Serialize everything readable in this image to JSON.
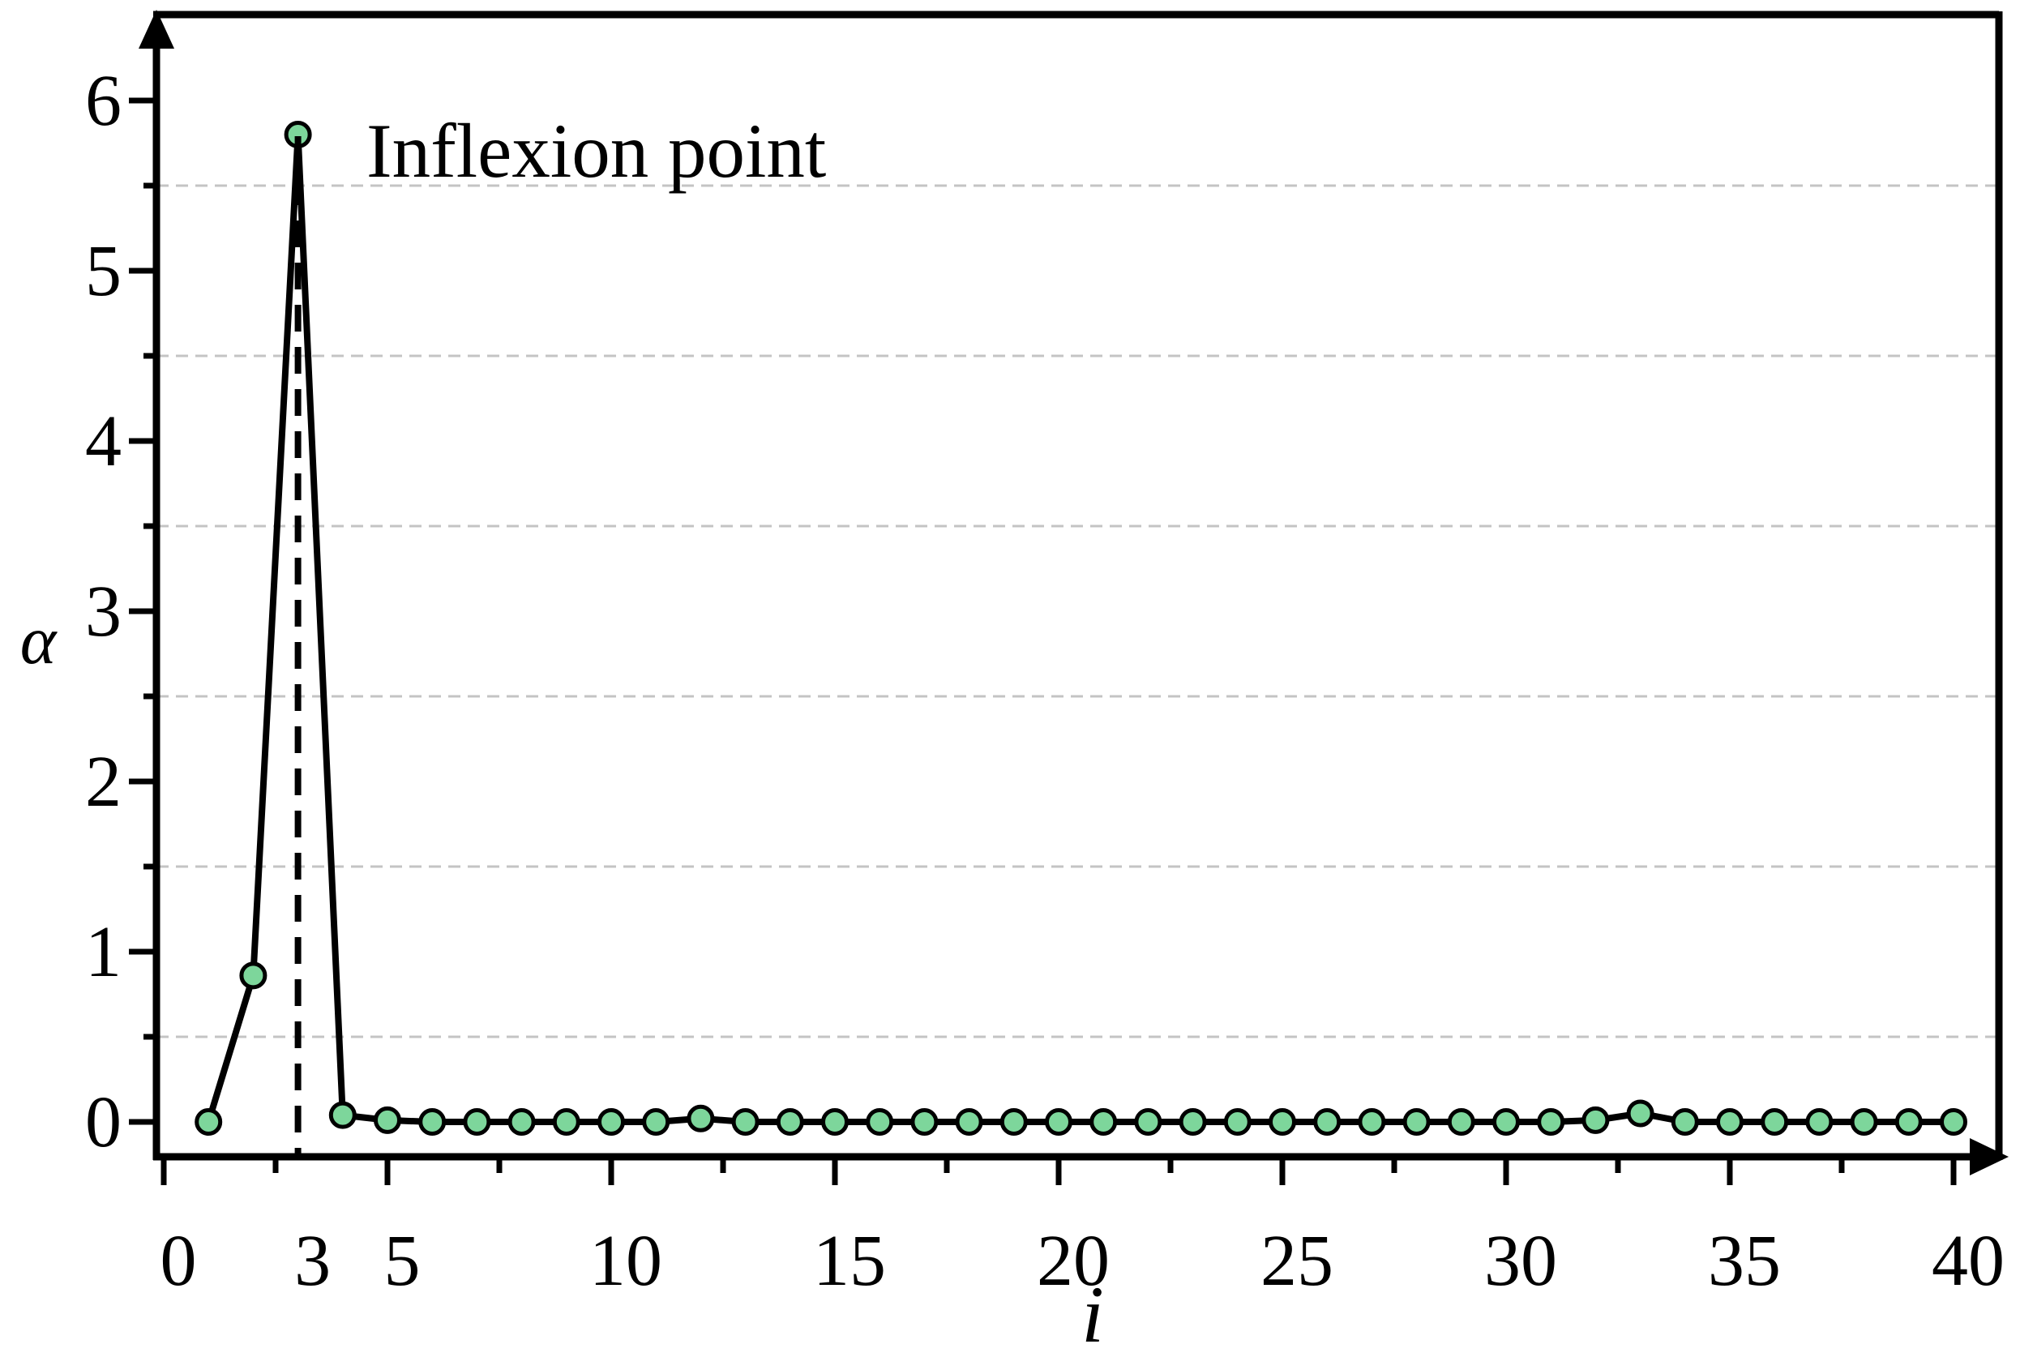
{
  "chart_data": {
    "type": "line",
    "title": "",
    "xlabel": "i",
    "ylabel": "α",
    "legend": "none",
    "grid": "horizontal dashed gridlines at y minor ticks",
    "xlim": [
      -0.2,
      41.2
    ],
    "ylim": [
      -0.21,
      6.5
    ],
    "x_major_ticks": [
      "0",
      "5",
      "10",
      "15",
      "20",
      "25",
      "30",
      "35",
      "40"
    ],
    "x_major_tick_values": [
      0,
      5,
      10,
      15,
      20,
      25,
      30,
      35,
      40
    ],
    "x_minor_tick_values": [
      2.5,
      7.5,
      12.5,
      17.5,
      22.5,
      27.5,
      32.5,
      37.5
    ],
    "x_extra_tick_label": {
      "label": "3",
      "value": 3
    },
    "y_major_ticks": [
      "0",
      "1",
      "2",
      "3",
      "4",
      "5",
      "6"
    ],
    "y_major_tick_values": [
      0,
      1,
      2,
      3,
      4,
      5,
      6
    ],
    "y_minor_tick_values": [
      0.5,
      1.5,
      2.5,
      3.5,
      4.5,
      5.5
    ],
    "x": [
      1,
      2,
      3,
      4,
      5,
      6,
      7,
      8,
      9,
      10,
      11,
      12,
      13,
      14,
      15,
      16,
      17,
      18,
      19,
      20,
      21,
      22,
      23,
      24,
      25,
      26,
      27,
      28,
      29,
      30,
      31,
      32,
      33,
      34,
      35,
      36,
      37,
      38,
      39,
      40
    ],
    "values": [
      0.0,
      0.86,
      5.8,
      0.04,
      0.01,
      0.0,
      0.0,
      0.0,
      0.0,
      0.0,
      0.0,
      0.02,
      0.0,
      0.0,
      0.0,
      0.0,
      0.0,
      0.0,
      0.0,
      0.0,
      0.0,
      0.0,
      0.0,
      0.0,
      0.0,
      0.0,
      0.0,
      0.0,
      0.0,
      0.0,
      0.0,
      0.01,
      0.05,
      0.0,
      0.0,
      0.0,
      0.0,
      0.0,
      0.0,
      0.0
    ],
    "annotation": {
      "text": "Inflexion point",
      "x": 4.55,
      "y": 5.55
    },
    "reference_line": {
      "style": "dashed vertical",
      "x": 3
    },
    "colors": {
      "marker_fill": "#7dd69b",
      "marker_stroke": "#000000",
      "line": "#000000",
      "axis": "#000000",
      "grid": "#c4c4c4",
      "background": "#ffffff"
    }
  }
}
